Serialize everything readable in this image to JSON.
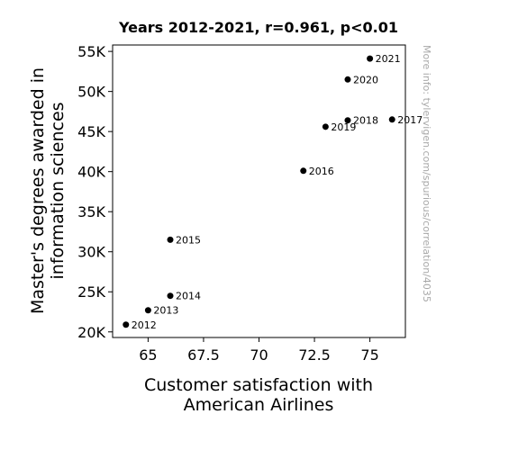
{
  "chart_data": {
    "type": "scatter",
    "title": "Years 2012-2021, r=0.961, p<0.01",
    "xlabel": [
      "Customer satisfaction with",
      "American Airlines"
    ],
    "ylabel": [
      "Master's degrees awarded in",
      "information sciences"
    ],
    "xlim": [
      63.4,
      76.6
    ],
    "ylim": [
      19300,
      55800
    ],
    "xticks": [
      65,
      67.5,
      70,
      72.5,
      75
    ],
    "xtick_labels": [
      "65",
      "67.5",
      "70",
      "72.5",
      "75"
    ],
    "yticks": [
      20000,
      25000,
      30000,
      35000,
      40000,
      45000,
      50000,
      55000
    ],
    "ytick_labels": [
      "20K",
      "25K",
      "30K",
      "35K",
      "40K",
      "45K",
      "50K",
      "55K"
    ],
    "grid": false,
    "points": [
      {
        "label": "2012",
        "x": 64,
        "y": 20900
      },
      {
        "label": "2013",
        "x": 65,
        "y": 22700
      },
      {
        "label": "2014",
        "x": 66,
        "y": 24500
      },
      {
        "label": "2015",
        "x": 66,
        "y": 31500
      },
      {
        "label": "2016",
        "x": 72,
        "y": 40100
      },
      {
        "label": "2017",
        "x": 76,
        "y": 46500
      },
      {
        "label": "2018",
        "x": 74,
        "y": 46400
      },
      {
        "label": "2019",
        "x": 73,
        "y": 45600
      },
      {
        "label": "2020",
        "x": 74,
        "y": 51500
      },
      {
        "label": "2021",
        "x": 75,
        "y": 54100
      }
    ],
    "marker_color": "#000000"
  },
  "watermark": "More info: tylervigen.com/spurious/correlation/4035"
}
